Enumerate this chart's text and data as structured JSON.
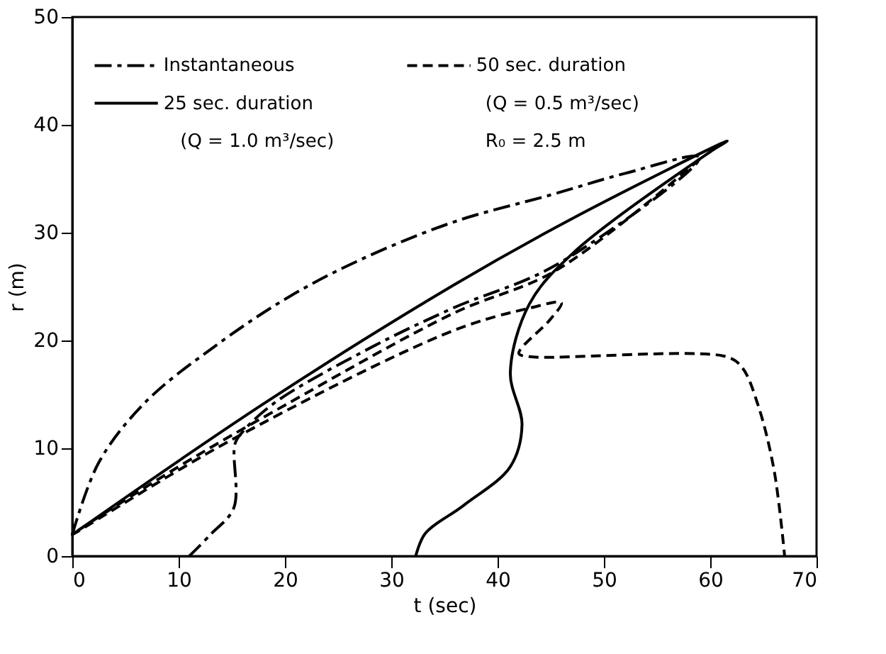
{
  "chart_data": {
    "type": "line",
    "xlabel": "t (sec)",
    "ylabel": "r (m)",
    "xlim": [
      0,
      70
    ],
    "ylim": [
      0,
      50
    ],
    "xticks": [
      0,
      10,
      20,
      30,
      40,
      50,
      60,
      70
    ],
    "yticks": [
      0,
      10,
      20,
      30,
      40,
      50
    ],
    "grid": false,
    "legend": "top",
    "annotations": [
      "(Q = 1.0 m³/sec)",
      "(Q = 0.5 m³/sec)",
      "R₀ = 2.5 m"
    ],
    "series": [
      {
        "name": "Instantaneous",
        "color": "#000000",
        "line_style": "dashdot",
        "x": [
          0,
          2.5,
          6.9,
          13.6,
          20.3,
          26.9,
          35.9,
          45,
          52,
          59,
          45.5,
          35.8,
          28,
          19,
          16,
          15.3,
          15.2,
          13,
          11
        ],
        "values": [
          2,
          8.7,
          14.3,
          19.6,
          24,
          27.4,
          31,
          33.5,
          35.5,
          37,
          27,
          23,
          19.3,
          14.2,
          11.5,
          10.4,
          4.5,
          2,
          0
        ]
      },
      {
        "name": "25 sec. duration",
        "color": "#000000",
        "line_style": "solid",
        "x": [
          0,
          18.1,
          35.8,
          47.2,
          61.6,
          60,
          47.2,
          43,
          41.2,
          42.3,
          41.2,
          36.8,
          33.2,
          32.3
        ],
        "values": [
          2,
          14.2,
          25.1,
          31.4,
          38.5,
          37.5,
          28.2,
          23.4,
          17,
          12.2,
          8.3,
          4.7,
          2.1,
          0
        ]
      },
      {
        "name": "50 sec. duration",
        "color": "#000000",
        "line_style": "dashed",
        "x": [
          59,
          45.5,
          35.8,
          20,
          10,
          0,
          15,
          35.8,
          43,
          46,
          45,
          42,
          43,
          61.5,
          63,
          64.5,
          66,
          67
        ],
        "values": [
          36.8,
          26.5,
          22.5,
          14,
          8.3,
          2,
          10.8,
          20.9,
          23,
          23.5,
          22,
          18.8,
          18.5,
          18.5,
          17.5,
          14,
          8,
          0
        ]
      }
    ]
  }
}
